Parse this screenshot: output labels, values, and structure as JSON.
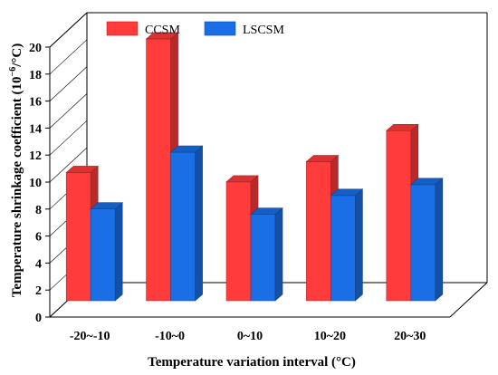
{
  "chart_data": {
    "type": "bar",
    "title": "",
    "xlabel": "Temperature variation interval (°C)",
    "ylabel": "Temperature shrinkage coefficient (10",
    "ylabel_sup": "−6",
    "ylabel_tail": "/°C)",
    "categories": [
      "-20~-10",
      "-10~0",
      "0~10",
      "10~20",
      "20~30"
    ],
    "series": [
      {
        "name": "CCSM",
        "values": [
          9.5,
          19.4,
          8.8,
          10.3,
          12.6
        ]
      },
      {
        "name": "LSCSM",
        "values": [
          6.8,
          11.0,
          6.4,
          7.8,
          8.6
        ]
      }
    ],
    "ylim": [
      0,
      20
    ],
    "yticks": [
      0,
      2,
      4,
      6,
      8,
      10,
      12,
      14,
      16,
      18,
      20
    ],
    "legend_position": "top-left",
    "grid": false,
    "colors": {
      "CCSM": "#ff3b3b",
      "LSCSM": "#1a6fe6"
    }
  }
}
